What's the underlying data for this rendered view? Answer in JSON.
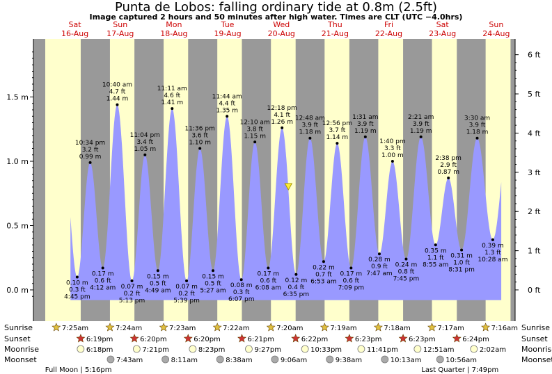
{
  "title": "Punta de Lobos: falling  ordinary tide at 0.8m (2.5ft)",
  "subtitle": "Image captured 2 hours and 50 minutes after high water. Times are CLT (UTC −4.0hrs)",
  "colors": {
    "day": "#ffffcc",
    "night": "#999999",
    "tide": "#9999ff",
    "day_labels": "#cc0000",
    "sun": "#e0c040",
    "sunset_star": "#cc3333"
  },
  "chart_data": {
    "type": "area",
    "title": "Punta de Lobos: falling  ordinary tide at 0.8m (2.5ft)",
    "xlabel": "",
    "ylabel": "",
    "y_left_unit": "m",
    "y_right_unit": "ft",
    "yticks_m": [
      "1.5 m",
      "1.0 m",
      "0.5 m",
      "0.0 m"
    ],
    "yticks_ft": [
      "6 ft",
      "5 ft",
      "4 ft",
      "3 ft",
      "2 ft",
      "1 ft",
      "0 ft"
    ],
    "ylim_m": [
      -0.05,
      1.85
    ],
    "grid": false,
    "current_level_m": 0.8,
    "days": [
      {
        "dow": "Sat",
        "date": "16-Aug"
      },
      {
        "dow": "Sun",
        "date": "17-Aug"
      },
      {
        "dow": "Mon",
        "date": "18-Aug"
      },
      {
        "dow": "Tue",
        "date": "19-Aug"
      },
      {
        "dow": "Wed",
        "date": "20-Aug"
      },
      {
        "dow": "Thu",
        "date": "21-Aug"
      },
      {
        "dow": "Fri",
        "date": "22-Aug"
      },
      {
        "dow": "Sat",
        "date": "23-Aug"
      },
      {
        "dow": "Sun",
        "date": "24-Aug"
      }
    ],
    "tides": [
      {
        "t": "4:45 pm",
        "ft": "0.3 ft",
        "m": 0.1,
        "m_label": "0.10 m",
        "type": "low"
      },
      {
        "t": "10:34 pm",
        "ft": "3.2 ft",
        "m": 0.99,
        "m_label": "0.99 m",
        "type": "high"
      },
      {
        "t": "4:12 am",
        "ft": "0.6 ft",
        "m": 0.17,
        "m_label": "0.17 m",
        "type": "low"
      },
      {
        "t": "10:40 am",
        "ft": "4.7 ft",
        "m": 1.44,
        "m_label": "1.44 m",
        "type": "high"
      },
      {
        "t": "5:13 pm",
        "ft": "0.2 ft",
        "m": 0.07,
        "m_label": "0.07 m",
        "type": "low"
      },
      {
        "t": "11:04 pm",
        "ft": "3.4 ft",
        "m": 1.05,
        "m_label": "1.05 m",
        "type": "high"
      },
      {
        "t": "4:49 am",
        "ft": "0.5 ft",
        "m": 0.15,
        "m_label": "0.15 m",
        "type": "low"
      },
      {
        "t": "11:11 am",
        "ft": "4.6 ft",
        "m": 1.41,
        "m_label": "1.41 m",
        "type": "high"
      },
      {
        "t": "5:39 pm",
        "ft": "0.2 ft",
        "m": 0.07,
        "m_label": "0.07 m",
        "type": "low"
      },
      {
        "t": "11:36 pm",
        "ft": "3.6 ft",
        "m": 1.1,
        "m_label": "1.10 m",
        "type": "high"
      },
      {
        "t": "5:27 am",
        "ft": "0.5 ft",
        "m": 0.15,
        "m_label": "0.15 m",
        "type": "low"
      },
      {
        "t": "11:44 am",
        "ft": "4.4 ft",
        "m": 1.35,
        "m_label": "1.35 m",
        "type": "high"
      },
      {
        "t": "6:07 pm",
        "ft": "0.3 ft",
        "m": 0.08,
        "m_label": "0.08 m",
        "type": "low"
      },
      {
        "t": "12:10 am",
        "ft": "3.8 ft",
        "m": 1.15,
        "m_label": "1.15 m",
        "type": "high"
      },
      {
        "t": "6:08 am",
        "ft": "0.6 ft",
        "m": 0.17,
        "m_label": "0.17 m",
        "type": "low"
      },
      {
        "t": "12:18 pm",
        "ft": "4.1 ft",
        "m": 1.26,
        "m_label": "1.26 m",
        "type": "high"
      },
      {
        "t": "6:35 pm",
        "ft": "0.4 ft",
        "m": 0.12,
        "m_label": "0.12 m",
        "type": "low"
      },
      {
        "t": "12:48 am",
        "ft": "3.9 ft",
        "m": 1.18,
        "m_label": "1.18 m",
        "type": "high"
      },
      {
        "t": "6:53 am",
        "ft": "0.7 ft",
        "m": 0.22,
        "m_label": "0.22 m",
        "type": "low"
      },
      {
        "t": "12:56 pm",
        "ft": "3.7 ft",
        "m": 1.14,
        "m_label": "1.14 m",
        "type": "high"
      },
      {
        "t": "7:09 pm",
        "ft": "0.6 ft",
        "m": 0.17,
        "m_label": "0.17 m",
        "type": "low"
      },
      {
        "t": "1:31 am",
        "ft": "3.9 ft",
        "m": 1.19,
        "m_label": "1.19 m",
        "type": "high"
      },
      {
        "t": "7:47 am",
        "ft": "0.9 ft",
        "m": 0.28,
        "m_label": "0.28 m",
        "type": "low"
      },
      {
        "t": "1:40 pm",
        "ft": "3.3 ft",
        "m": 1.0,
        "m_label": "1.00 m",
        "type": "high"
      },
      {
        "t": "7:45 pm",
        "ft": "0.8 ft",
        "m": 0.24,
        "m_label": "0.24 m",
        "type": "low"
      },
      {
        "t": "2:21 am",
        "ft": "3.9 ft",
        "m": 1.19,
        "m_label": "1.19 m",
        "type": "high"
      },
      {
        "t": "8:55 am",
        "ft": "1.1 ft",
        "m": 0.35,
        "m_label": "0.35 m",
        "type": "low"
      },
      {
        "t": "2:38 pm",
        "ft": "2.9 ft",
        "m": 0.87,
        "m_label": "0.87 m",
        "type": "high"
      },
      {
        "t": "8:31 pm",
        "ft": "1.0 ft",
        "m": 0.31,
        "m_label": "0.31 m",
        "type": "low"
      },
      {
        "t": "3:30 am",
        "ft": "3.9 ft",
        "m": 1.18,
        "m_label": "1.18 m",
        "type": "high"
      },
      {
        "t": "10:28 am",
        "ft": "1.3 ft",
        "m": 0.39,
        "m_label": "0.39 m",
        "type": "low"
      }
    ]
  },
  "astro": {
    "row_labels": [
      "Sunrise",
      "Sunset",
      "Moonrise",
      "Moonset"
    ],
    "sunrise": [
      "7:25am",
      "7:24am",
      "7:23am",
      "7:22am",
      "7:20am",
      "7:19am",
      "7:18am",
      "7:17am",
      "7:16am"
    ],
    "sunset": [
      "6:19pm",
      "6:20pm",
      "6:20pm",
      "6:21pm",
      "6:22pm",
      "6:23pm",
      "6:23pm",
      "6:24pm"
    ],
    "moonrise": [
      "6:18pm",
      "7:21pm",
      "8:23pm",
      "9:27pm",
      "10:33pm",
      "11:41pm",
      "12:51am",
      "2:02am"
    ],
    "moonset": [
      "7:43am",
      "8:11am",
      "8:38am",
      "9:06am",
      "9:38am",
      "10:13am",
      "10:56am"
    ],
    "moon_phases": [
      {
        "label": "Full Moon | 5:16pm"
      },
      {
        "label": "Last Quarter | 7:49pm"
      }
    ]
  }
}
